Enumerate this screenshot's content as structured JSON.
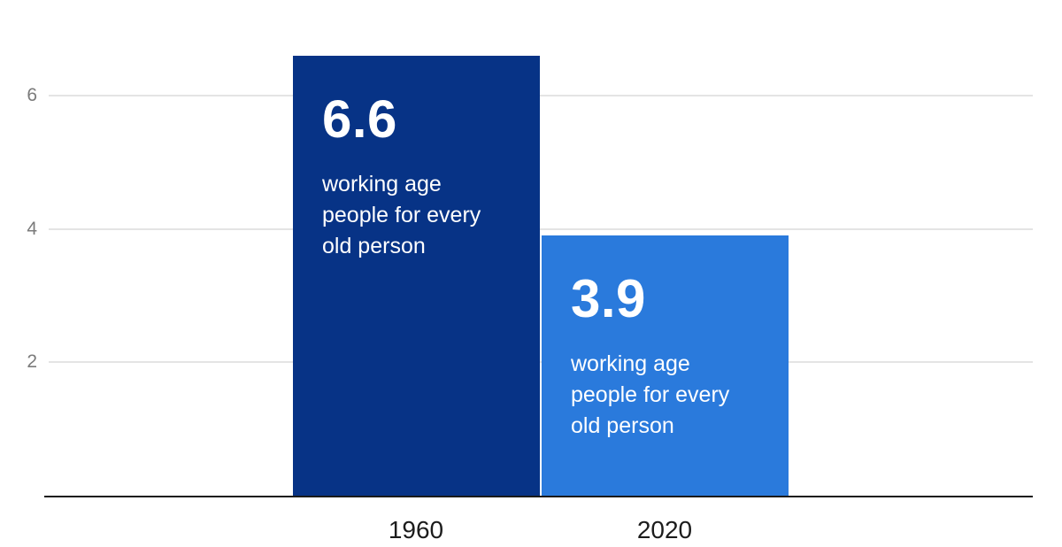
{
  "chart_data": {
    "type": "bar",
    "title": "",
    "xlabel": "",
    "ylabel": "",
    "categories": [
      "1960",
      "2020"
    ],
    "values": [
      6.6,
      3.9
    ],
    "yticks": [
      2,
      4,
      6
    ],
    "ylim": [
      0,
      7
    ],
    "grid": "horizontal",
    "legend": "none",
    "bars": [
      {
        "category": "1960",
        "value": 6.6,
        "value_label": "6.6",
        "description": "working age people for every old person",
        "description_lines": [
          "working age",
          "people for every",
          "old person"
        ],
        "color": "#073386"
      },
      {
        "category": "2020",
        "value": 3.9,
        "value_label": "3.9",
        "description": "working age people for every old person",
        "description_lines": [
          "working age",
          "people for every",
          "old person"
        ],
        "color": "#2a7adc"
      }
    ],
    "colors": {
      "bar_1960": "#073386",
      "bar_2020": "#2a7adc",
      "on_bar_text": "#ffffff",
      "gridline": "#e4e4e4",
      "axis_line": "#1a1a1a",
      "y_tick_text": "#7b7b7b",
      "x_label_text": "#1c1c1c",
      "background": "#ffffff"
    }
  }
}
